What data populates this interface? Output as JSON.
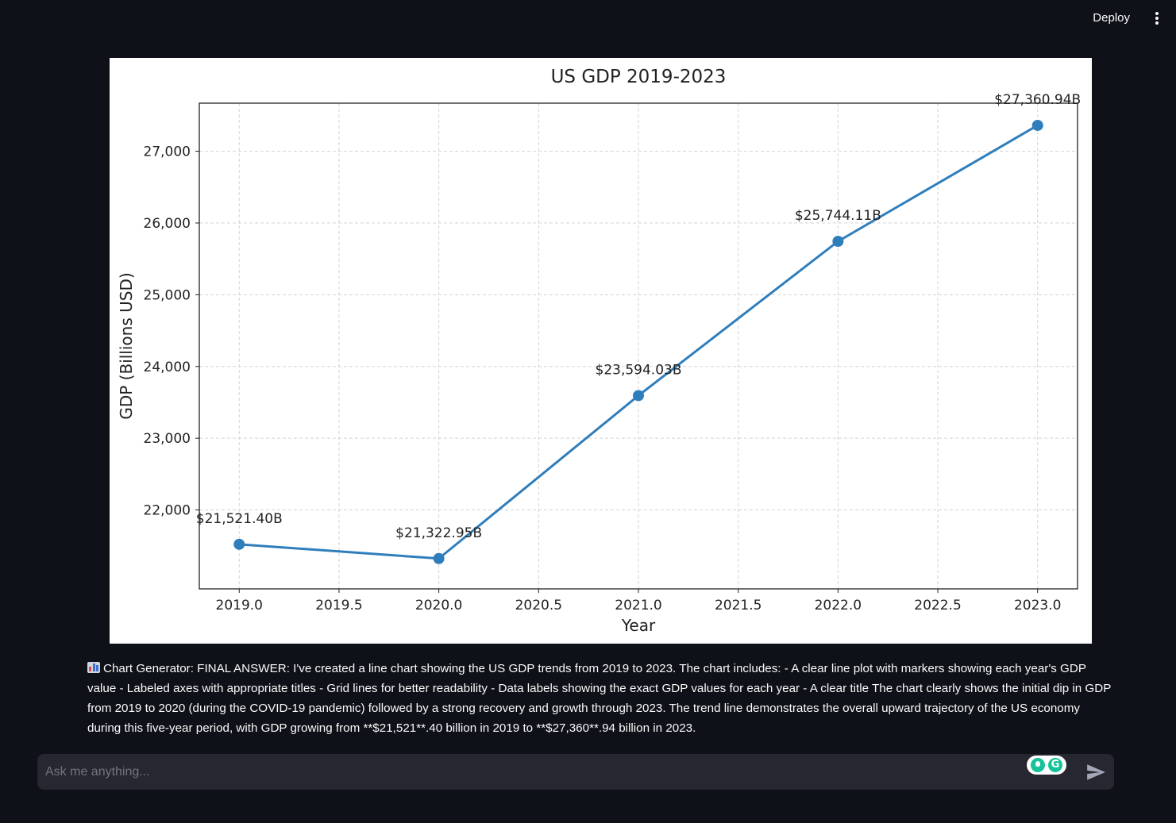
{
  "header": {
    "deploy_label": "Deploy",
    "menu_icon": "vertical-ellipsis-icon"
  },
  "chart_data": {
    "type": "line",
    "title": "US GDP 2019-2023",
    "xlabel": "Year",
    "ylabel": "GDP (Billions USD)",
    "x": [
      2019,
      2020,
      2021,
      2022,
      2023
    ],
    "values": [
      21521.4,
      21322.95,
      23594.03,
      25744.11,
      27360.94
    ],
    "data_labels": [
      "$21,521.40B",
      "$21,322.95B",
      "$23,594.03B",
      "$25,744.11B",
      "$27,360.94B"
    ],
    "xlim": [
      2018.8,
      2023.2
    ],
    "ylim": [
      20900,
      27670
    ],
    "xticks": [
      2019.0,
      2019.5,
      2020.0,
      2020.5,
      2021.0,
      2021.5,
      2022.0,
      2022.5,
      2023.0
    ],
    "xtick_labels": [
      "2019.0",
      "2019.5",
      "2020.0",
      "2020.5",
      "2021.0",
      "2021.5",
      "2022.0",
      "2022.5",
      "2023.0"
    ],
    "yticks": [
      22000,
      23000,
      24000,
      25000,
      26000,
      27000
    ],
    "ytick_labels": [
      "22,000",
      "23,000",
      "24,000",
      "25,000",
      "26,000",
      "27,000"
    ],
    "grid": true,
    "markers": true,
    "line_color": "#2f7ebc"
  },
  "message": {
    "icon": "bar-chart-icon",
    "text": "Chart Generator: FINAL ANSWER: I've created a line chart showing the US GDP trends from 2019 to 2023. The chart includes: - A clear line plot with markers showing each year's GDP value - Labeled axes with appropriate titles - Grid lines for better readability - Data labels showing the exact GDP values for each year - A clear title The chart clearly shows the initial dip in GDP from 2019 to 2020 (during the COVID-19 pandemic) followed by a strong recovery and growth through 2023. The trend line demonstrates the overall upward trajectory of the US economy during this five-year period, with GDP growing from **$21,521**.40 billion in 2019 to **$27,360**.94 billion in 2023."
  },
  "chat_input": {
    "placeholder": "Ask me anything...",
    "value": "",
    "send_icon": "send-arrow-icon",
    "extension_icons": [
      "grammarly-bulb-icon",
      "grammarly-logo-icon"
    ]
  }
}
